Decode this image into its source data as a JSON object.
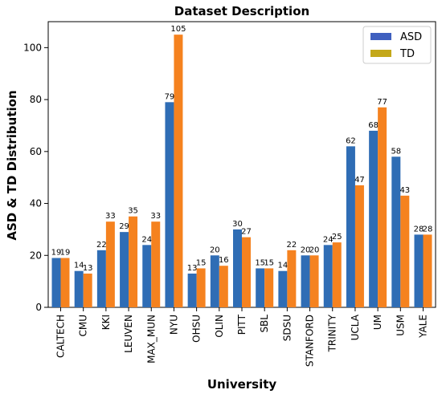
{
  "chart_data": {
    "type": "bar",
    "title": "Dataset Description",
    "xlabel": "University",
    "ylabel": "ASD & TD Distribution",
    "categories": [
      "CALTECH",
      "CMU",
      "KKI",
      "LEUVEN",
      "MAX_MUN",
      "NYU",
      "OHSU",
      "OLIN",
      "PITT",
      "SBL",
      "SDSU",
      "STANFORD",
      "TRINITY",
      "UCLA",
      "UM",
      "USM",
      "YALE"
    ],
    "series": [
      {
        "name": "ASD",
        "color": "#2f6db5",
        "values": [
          19,
          14,
          22,
          29,
          24,
          79,
          13,
          20,
          30,
          15,
          14,
          20,
          24,
          62,
          68,
          58,
          28
        ]
      },
      {
        "name": "TD",
        "color": "#f5821f",
        "values": [
          19,
          13,
          33,
          35,
          33,
          105,
          15,
          16,
          27,
          15,
          22,
          20,
          25,
          47,
          77,
          43,
          28
        ]
      }
    ],
    "ylim": [
      0,
      110
    ],
    "yticks": [
      0,
      20,
      40,
      60,
      80,
      100
    ],
    "grid": false,
    "legend_position": "top-right",
    "legend_swatches": {
      "ASD": "#3f5fbf",
      "TD": "#c4a81a"
    }
  }
}
